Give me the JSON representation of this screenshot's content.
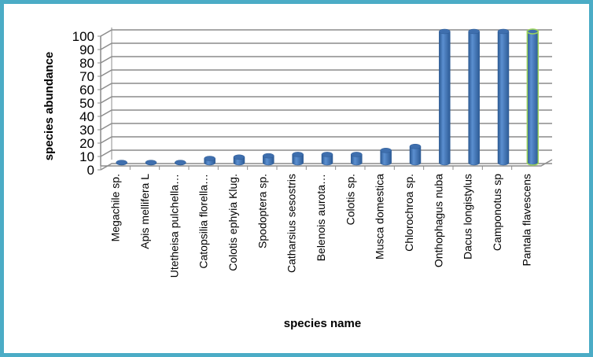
{
  "chart_data": {
    "type": "bar",
    "style": "3d-cylinder",
    "xlabel": "species name",
    "ylabel": "species abundance",
    "ylim": [
      0,
      100
    ],
    "yticks": [
      0,
      10,
      20,
      30,
      40,
      50,
      60,
      70,
      80,
      90,
      100
    ],
    "grid": true,
    "legend": "none",
    "categories": [
      "Megachile sp.",
      "Apis mellifera L",
      "Utetheisa pulchella…",
      "Catopsilia florella…",
      "Colotis ephyia Klug.",
      "Spodoptera sp.",
      "Catharsius sesostris",
      "Belenois aurota…",
      "Colotis sp.",
      "Musca domestica",
      "Chlorochroa sp.",
      "Onthophagus nuba",
      "Dacus longistylus",
      "Camponotus sp",
      "Pantala flavescens"
    ],
    "values": [
      2,
      2,
      2,
      5,
      6,
      7,
      8,
      8,
      8,
      11,
      14,
      100,
      100,
      100,
      100
    ],
    "colors": {
      "bar": "#4a7ebb",
      "frame": "#4bacc6",
      "grid": "#8c8c8c",
      "highlight_outline": "#9bd35a"
    }
  }
}
